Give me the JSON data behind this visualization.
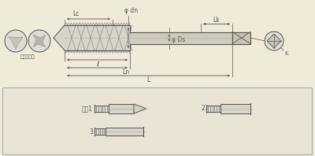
{
  "bg_color": "#f0ead8",
  "line_color": "#555555",
  "dim_color": "#555555",
  "cross_section_label": "切削タップ",
  "form_labels": [
    "形弟1",
    "2",
    "3"
  ],
  "panel_bg": "#eae4d4",
  "panel_border": "#aaaaaa",
  "tap_fill": "#d8d4c8",
  "shank_fill": "#d0ccbc",
  "sq_fill": "#c8c4b4"
}
